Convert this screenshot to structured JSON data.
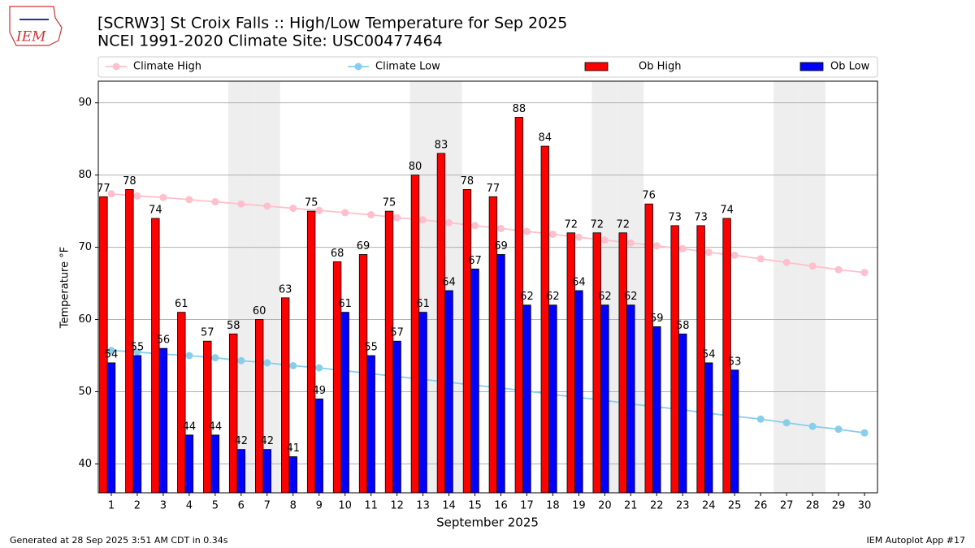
{
  "logo_text": "IEM",
  "footer_left": "Generated at 28 Sep 2025 3:51 AM CDT in 0.34s",
  "footer_right": "IEM Autoplot App #17",
  "chart_data": {
    "type": "bar",
    "title": "[SCRW3] St Croix Falls :: High/Low Temperature for Sep 2025",
    "subtitle": "NCEI 1991-2020 Climate Site: USC00477464",
    "x_label": "September 2025",
    "y_label": "Temperature °F",
    "categories": [
      "1",
      "2",
      "3",
      "4",
      "5",
      "6",
      "7",
      "8",
      "9",
      "10",
      "11",
      "12",
      "13",
      "14",
      "15",
      "16",
      "17",
      "18",
      "19",
      "20",
      "21",
      "22",
      "23",
      "24",
      "25",
      "26",
      "27",
      "28",
      "29",
      "30"
    ],
    "shaded_categories": [
      "6",
      "7",
      "13",
      "14",
      "20",
      "21",
      "27",
      "28"
    ],
    "series": [
      {
        "name": "Climate High",
        "kind": "line",
        "color": "#ffc0cb",
        "values": [
          77.4,
          77.1,
          76.9,
          76.6,
          76.3,
          76.0,
          75.7,
          75.4,
          75.1,
          74.8,
          74.5,
          74.1,
          73.8,
          73.4,
          73.0,
          72.6,
          72.2,
          71.8,
          71.4,
          71.0,
          70.6,
          70.2,
          69.8,
          69.3,
          68.9,
          68.4,
          67.9,
          67.4,
          66.9,
          66.5
        ]
      },
      {
        "name": "Climate Low",
        "kind": "line",
        "color": "#87ceeb",
        "values": [
          55.7,
          55.5,
          55.2,
          55.0,
          54.7,
          54.3,
          54.0,
          53.6,
          53.3,
          52.9,
          52.5,
          52.1,
          51.7,
          51.3,
          50.9,
          50.5,
          50.1,
          49.6,
          49.2,
          48.8,
          48.3,
          47.9,
          47.5,
          47.0,
          46.6,
          46.2,
          45.7,
          45.2,
          44.8,
          44.3
        ]
      },
      {
        "name": "Ob High",
        "kind": "bar",
        "color": "#ff0000",
        "values": [
          77,
          78,
          74,
          61,
          57,
          58,
          60,
          63,
          75,
          68,
          69,
          75,
          80,
          83,
          78,
          77,
          88,
          84,
          72,
          72,
          72,
          76,
          73,
          73,
          74,
          null,
          null,
          null,
          null,
          null
        ]
      },
      {
        "name": "Ob Low",
        "kind": "bar",
        "color": "#0000ff",
        "values": [
          54,
          55,
          56,
          44,
          44,
          42,
          42,
          41,
          49,
          61,
          55,
          57,
          61,
          64,
          67,
          69,
          62,
          62,
          64,
          62,
          62,
          59,
          58,
          54,
          53,
          null,
          null,
          null,
          null,
          null
        ]
      }
    ],
    "ylim": [
      36,
      93
    ],
    "yticks": [
      40,
      50,
      60,
      70,
      80,
      90
    ],
    "grid": true,
    "legend": "top"
  }
}
